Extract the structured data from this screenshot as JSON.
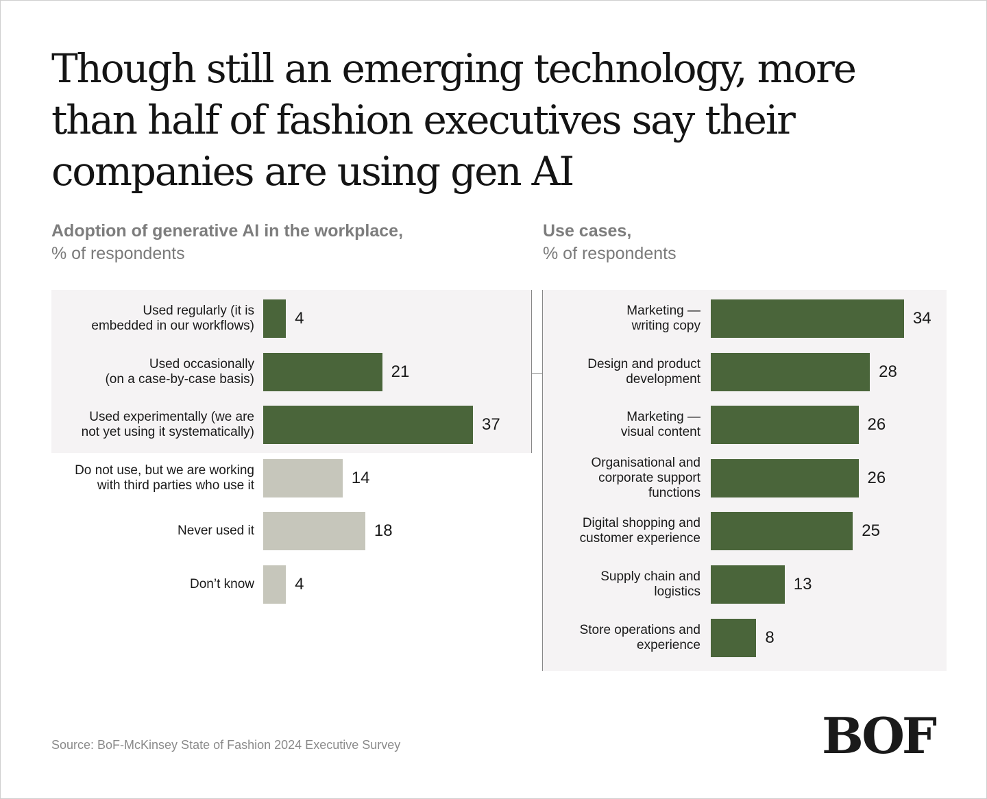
{
  "title": "Though still an emerging technology, more than half of fashion executives say their companies are using gen AI",
  "source": "Source: BoF-McKinsey State of Fashion 2024 Executive Survey",
  "logo": "BOF",
  "colors": {
    "primary": "#4a653a",
    "secondary": "#c6c6bb",
    "panel": "#f5f3f4"
  },
  "chart_data": [
    {
      "type": "bar",
      "orientation": "horizontal",
      "title": "Adoption of generative AI in the workplace,",
      "subtitle": "% of respondents",
      "categories": [
        "Used regularly (it is embedded in our workflows)",
        "Used occasionally (on a case-by-case basis)",
        "Used experimentally (we are not yet using it systematically)",
        "Do not use, but we are working with third parties who use it",
        "Never used it",
        "Don’t know"
      ],
      "values": [
        4,
        21,
        37,
        14,
        18,
        4
      ],
      "bar_colors": [
        "#4a653a",
        "#4a653a",
        "#4a653a",
        "#c6c6bb",
        "#c6c6bb",
        "#c6c6bb"
      ],
      "highlighted_group": [
        0,
        1,
        2
      ]
    },
    {
      "type": "bar",
      "orientation": "horizontal",
      "title": "Use cases,",
      "subtitle": "% of respondents",
      "categories": [
        "Marketing — writing copy",
        "Design and product development",
        "Marketing — visual content",
        "Organisational and corporate support functions",
        "Digital shopping and customer experience",
        "Supply chain and logistics",
        "Store operations and experience"
      ],
      "values": [
        34,
        28,
        26,
        26,
        25,
        13,
        8
      ],
      "bar_colors": [
        "#4a653a",
        "#4a653a",
        "#4a653a",
        "#4a653a",
        "#4a653a",
        "#4a653a",
        "#4a653a"
      ]
    }
  ]
}
